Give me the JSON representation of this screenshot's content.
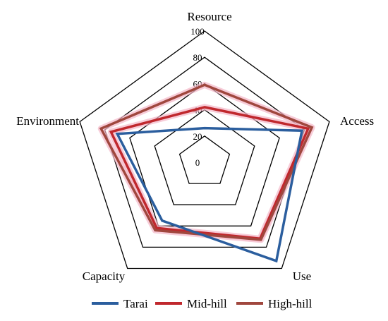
{
  "chart_data": {
    "type": "radar",
    "axes": [
      "Resource",
      "Access",
      "Use",
      "Capacity",
      "Environment"
    ],
    "ticks": [
      "0",
      "20",
      "40",
      "60",
      "80",
      "100"
    ],
    "rlim": [
      0,
      100
    ],
    "grid": true,
    "legend_position": "bottom",
    "series": [
      {
        "name": "Tarai",
        "values": [
          26,
          78,
          93,
          55,
          70
        ],
        "color": "#2b5e9e"
      },
      {
        "name": "Mid-hill",
        "values": [
          42,
          83,
          72,
          62,
          75
        ],
        "color": "#c0282d"
      },
      {
        "name": "High-hill",
        "values": [
          59,
          86,
          73,
          64,
          83
        ],
        "color": "#a0473e"
      }
    ]
  }
}
